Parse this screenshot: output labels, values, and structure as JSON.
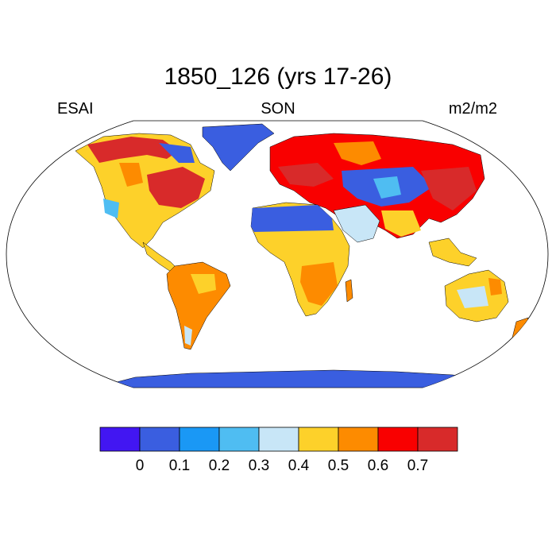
{
  "title": "1850_126 (yrs 17-26)",
  "left_label": "ESAI",
  "center_label": "SON",
  "right_label": "m2/m2",
  "colorbar": {
    "colors": [
      "#4216f2",
      "#3a5ee0",
      "#1a98f5",
      "#4fbdf2",
      "#c8e6f7",
      "#fdd12a",
      "#fd8b00",
      "#f90000",
      "#d82a2a"
    ],
    "ticks": [
      "0",
      "0.1",
      "0.2",
      "0.3",
      "0.4",
      "0.5",
      "0.6",
      "0.7"
    ]
  }
}
